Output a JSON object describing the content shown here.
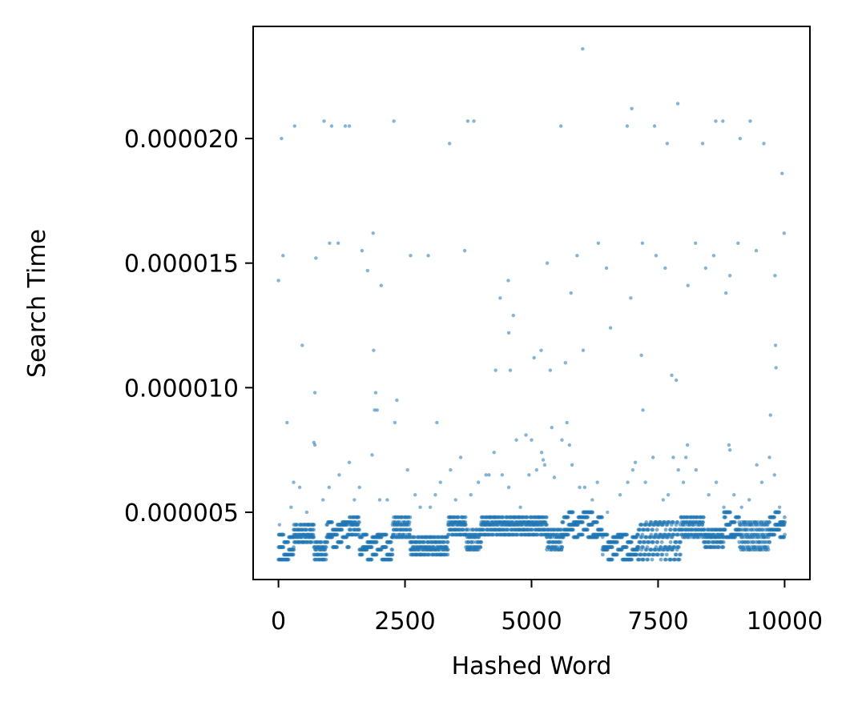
{
  "chart_data": {
    "type": "scatter",
    "title": "",
    "xlabel": "Hashed Word",
    "ylabel": "Search Time",
    "xlim": [
      -500,
      10500
    ],
    "ylim": [
      2.3e-06,
      2.45e-05
    ],
    "x_ticks": [
      0,
      2500,
      5000,
      7500,
      10000
    ],
    "x_tick_labels": [
      "0",
      "2500",
      "5000",
      "7500",
      "10000"
    ],
    "y_ticks": [
      5e-06,
      1e-05,
      1.5e-05,
      2e-05
    ],
    "y_tick_labels": [
      "0.000005",
      "0.000010",
      "0.000015",
      "0.000020"
    ],
    "grid": false,
    "legend": false,
    "point_color": "#1f77b4",
    "point_opacity": 0.55,
    "series": [
      {
        "points": [
          [
            0,
            1.43e-05
          ],
          [
            60,
            2e-05
          ],
          [
            90,
            1.53e-05
          ],
          [
            170,
            8.6e-06
          ],
          [
            320,
            2.05e-05
          ],
          [
            470,
            1.17e-05
          ],
          [
            720,
            9.8e-06
          ],
          [
            740,
            1.52e-05
          ],
          [
            900,
            2.07e-05
          ],
          [
            1010,
            1.58e-05
          ],
          [
            1050,
            2.05e-05
          ],
          [
            1180,
            1.58e-05
          ],
          [
            1320,
            2.05e-05
          ],
          [
            1400,
            2.05e-05
          ],
          [
            1650,
            1.55e-05
          ],
          [
            1760,
            1.47e-05
          ],
          [
            1870,
            1.62e-05
          ],
          [
            1880,
            1.15e-05
          ],
          [
            1920,
            9.8e-06
          ],
          [
            2030,
            1.41e-05
          ],
          [
            2280,
            2.07e-05
          ],
          [
            2340,
            9.5e-06
          ],
          [
            2610,
            1.53e-05
          ],
          [
            2960,
            1.53e-05
          ],
          [
            3130,
            8.6e-06
          ],
          [
            3380,
            1.98e-05
          ],
          [
            3680,
            1.55e-05
          ],
          [
            3740,
            2.07e-05
          ],
          [
            3860,
            2.07e-05
          ],
          [
            4160,
            6.5e-06
          ],
          [
            4290,
            1.07e-05
          ],
          [
            4380,
            1.36e-05
          ],
          [
            4540,
            1.43e-05
          ],
          [
            4550,
            1.22e-05
          ],
          [
            4580,
            1.07e-05
          ],
          [
            4640,
            1.29e-05
          ],
          [
            4890,
            8.1e-06
          ],
          [
            5050,
            1.12e-05
          ],
          [
            5190,
            1.15e-05
          ],
          [
            5310,
            1.5e-05
          ],
          [
            5370,
            1.07e-05
          ],
          [
            5580,
            2.05e-05
          ],
          [
            5670,
            1.1e-05
          ],
          [
            5780,
            1.38e-05
          ],
          [
            5900,
            1.53e-05
          ],
          [
            6010,
            2.36e-05
          ],
          [
            6020,
            1.15e-05
          ],
          [
            6320,
            1.58e-05
          ],
          [
            6480,
            1.48e-05
          ],
          [
            6560,
            1.24e-05
          ],
          [
            6890,
            2.05e-05
          ],
          [
            6960,
            1.36e-05
          ],
          [
            6980,
            2.12e-05
          ],
          [
            7170,
            1.13e-05
          ],
          [
            7190,
            1.58e-05
          ],
          [
            7200,
            9.1e-06
          ],
          [
            7430,
            2.05e-05
          ],
          [
            7460,
            1.53e-05
          ],
          [
            7640,
            1.48e-05
          ],
          [
            7680,
            1.98e-05
          ],
          [
            7770,
            1.05e-05
          ],
          [
            7860,
            1.03e-05
          ],
          [
            7890,
            2.14e-05
          ],
          [
            8090,
            1.41e-05
          ],
          [
            8240,
            1.58e-05
          ],
          [
            8380,
            1.98e-05
          ],
          [
            8440,
            1.48e-05
          ],
          [
            8600,
            1.53e-05
          ],
          [
            8640,
            2.07e-05
          ],
          [
            8780,
            2.07e-05
          ],
          [
            8840,
            1.38e-05
          ],
          [
            8920,
            1.45e-05
          ],
          [
            9080,
            1.58e-05
          ],
          [
            9120,
            2e-05
          ],
          [
            9320,
            2.07e-05
          ],
          [
            9440,
            1.55e-05
          ],
          [
            9590,
            1.98e-05
          ],
          [
            9720,
            8.9e-06
          ],
          [
            9810,
            1.45e-05
          ],
          [
            9820,
            1.17e-05
          ],
          [
            9830,
            1.08e-05
          ],
          [
            9950,
            1.86e-05
          ],
          [
            9990,
            1.62e-05
          ],
          [
            20,
            4.5e-06
          ],
          [
            250,
            5.2e-06
          ],
          [
            300,
            6.2e-06
          ],
          [
            420,
            6e-06
          ],
          [
            560,
            5e-06
          ],
          [
            700,
            7.8e-06
          ],
          [
            720,
            7.7e-06
          ],
          [
            880,
            5.5e-06
          ],
          [
            1000,
            6e-06
          ],
          [
            1200,
            6.5e-06
          ],
          [
            1400,
            7e-06
          ],
          [
            1500,
            5.5e-06
          ],
          [
            1600,
            6e-06
          ],
          [
            1850,
            7.3e-06
          ],
          [
            1900,
            9.1e-06
          ],
          [
            1950,
            9.1e-06
          ],
          [
            2000,
            5.5e-06
          ],
          [
            2150,
            5.5e-06
          ],
          [
            2300,
            8.6e-06
          ],
          [
            2550,
            6.7e-06
          ],
          [
            2700,
            5.7e-06
          ],
          [
            2800,
            5.2e-06
          ],
          [
            3000,
            5.2e-06
          ],
          [
            3100,
            5.7e-06
          ],
          [
            3200,
            6.2e-06
          ],
          [
            3400,
            6.7e-06
          ],
          [
            3500,
            5.5e-06
          ],
          [
            3600,
            7.2e-06
          ],
          [
            3800,
            5.7e-06
          ],
          [
            3950,
            6.2e-06
          ],
          [
            4100,
            6.5e-06
          ],
          [
            4260,
            7.4e-06
          ],
          [
            4420,
            6.5e-06
          ],
          [
            4550,
            6e-06
          ],
          [
            4700,
            7.9e-06
          ],
          [
            4780,
            5.2e-06
          ],
          [
            4950,
            6.5e-06
          ],
          [
            5000,
            7.9e-06
          ],
          [
            5100,
            6.7e-06
          ],
          [
            5200,
            7.4e-06
          ],
          [
            5230,
            7.1e-06
          ],
          [
            5260,
            6.9e-06
          ],
          [
            5400,
            8.4e-06
          ],
          [
            5450,
            6.4e-06
          ],
          [
            5600,
            7.9e-06
          ],
          [
            5700,
            8.6e-06
          ],
          [
            5750,
            7.7e-06
          ],
          [
            5800,
            6.9e-06
          ],
          [
            5950,
            6e-06
          ],
          [
            6050,
            6e-06
          ],
          [
            6200,
            5.5e-06
          ],
          [
            6300,
            6.2e-06
          ],
          [
            6500,
            5e-06
          ],
          [
            6750,
            5.7e-06
          ],
          [
            6900,
            6.2e-06
          ],
          [
            7000,
            6.7e-06
          ],
          [
            7050,
            7e-06
          ],
          [
            7250,
            6.2e-06
          ],
          [
            7400,
            7.2e-06
          ],
          [
            7600,
            5.5e-06
          ],
          [
            7700,
            5.7e-06
          ],
          [
            7800,
            7.2e-06
          ],
          [
            7900,
            6.7e-06
          ],
          [
            8000,
            6.2e-06
          ],
          [
            8050,
            7.2e-06
          ],
          [
            8080,
            7.7e-06
          ],
          [
            8250,
            6.7e-06
          ],
          [
            8500,
            5.7e-06
          ],
          [
            8650,
            6.2e-06
          ],
          [
            8800,
            5.2e-06
          ],
          [
            8900,
            7.7e-06
          ],
          [
            8920,
            7.5e-06
          ],
          [
            9000,
            5.7e-06
          ],
          [
            9150,
            5.2e-06
          ],
          [
            9300,
            5.5e-06
          ],
          [
            9450,
            6.9e-06
          ],
          [
            9550,
            6.2e-06
          ],
          [
            9700,
            7.2e-06
          ],
          [
            9800,
            6.5e-06
          ],
          [
            9900,
            5.2e-06
          ]
        ],
        "bands": [
          {
            "x": [
              0,
              300
            ],
            "y": [
              3.1e-06,
              4.1e-06
            ]
          },
          {
            "x": [
              300,
              700
            ],
            "y": [
              3.8e-06,
              4.5e-06
            ]
          },
          {
            "x": [
              700,
              950
            ],
            "y": [
              3.1e-06,
              3.9e-06
            ]
          },
          {
            "x": [
              950,
              1400
            ],
            "y": [
              3.6e-06,
              4.6e-06
            ]
          },
          {
            "x": [
              1400,
              1600
            ],
            "y": [
              4.1e-06,
              4.8e-06
            ]
          },
          {
            "x": [
              1600,
              2250
            ],
            "y": [
              3.1e-06,
              4.2e-06
            ]
          },
          {
            "x": [
              2250,
              2600
            ],
            "y": [
              3.9e-06,
              4.8e-06
            ]
          },
          {
            "x": [
              2600,
              3350
            ],
            "y": [
              3.3e-06,
              4e-06
            ]
          },
          {
            "x": [
              3350,
              3700
            ],
            "y": [
              4.1e-06,
              4.8e-06
            ]
          },
          {
            "x": [
              3700,
              4000
            ],
            "y": [
              3.5e-06,
              4.4e-06
            ]
          },
          {
            "x": [
              4000,
              5300
            ],
            "y": [
              4.1e-06,
              4.8e-06
            ]
          },
          {
            "x": [
              5300,
              5600
            ],
            "y": [
              3.5e-06,
              4.4e-06
            ]
          },
          {
            "x": [
              5600,
              6400
            ],
            "y": [
              4e-06,
              5e-06
            ]
          },
          {
            "x": [
              6400,
              7100
            ],
            "y": [
              3.1e-06,
              4.1e-06
            ]
          },
          {
            "x": [
              7100,
              7950
            ],
            "y": [
              3.1e-06,
              4.7e-06
            ]
          },
          {
            "x": [
              7950,
              8400
            ],
            "y": [
              4e-06,
              4.9e-06
            ]
          },
          {
            "x": [
              8400,
              8800
            ],
            "y": [
              3.6e-06,
              4.3e-06
            ]
          },
          {
            "x": [
              8800,
              9100
            ],
            "y": [
              4e-06,
              5e-06
            ]
          },
          {
            "x": [
              9100,
              9700
            ],
            "y": [
              3.5e-06,
              4.7e-06
            ]
          },
          {
            "x": [
              9700,
              10000
            ],
            "y": [
              4e-06,
              5e-06
            ]
          }
        ],
        "band_density": 3
      }
    ]
  }
}
